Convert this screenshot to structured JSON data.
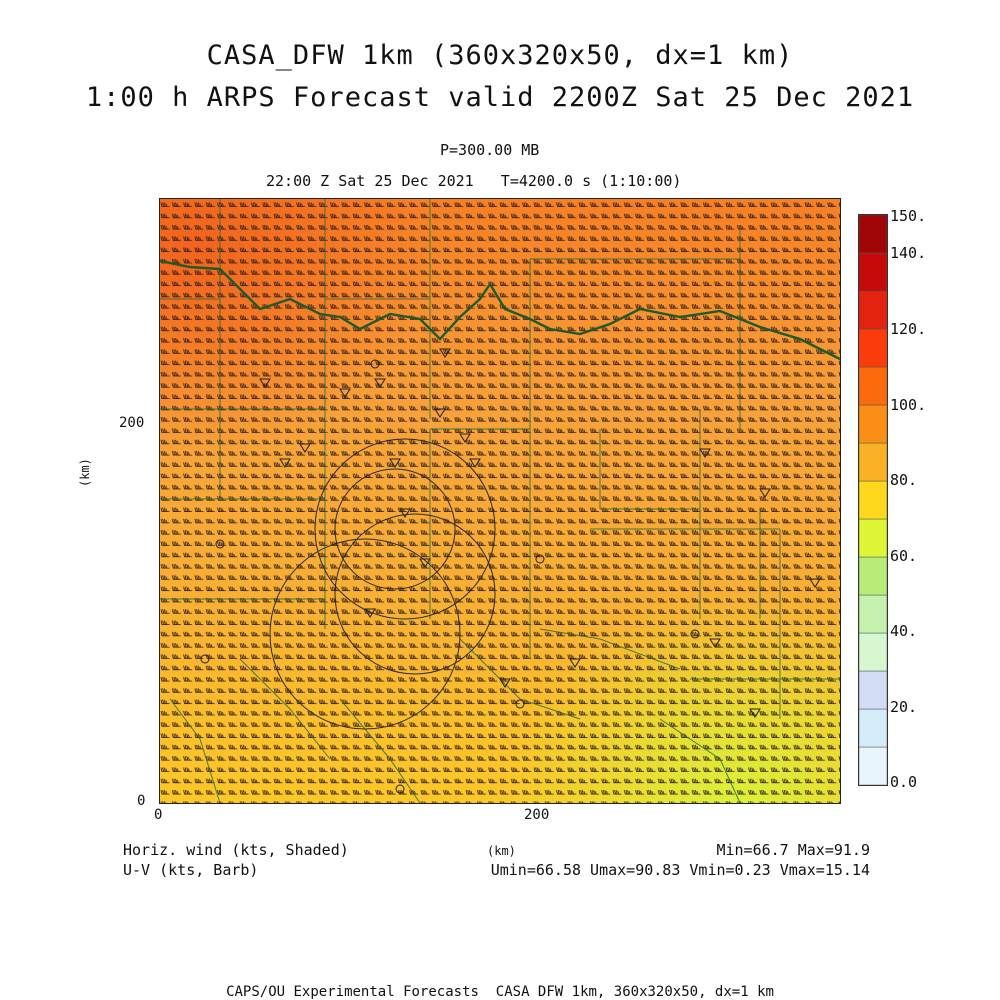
{
  "title": {
    "line1": "CASA_DFW 1km (360x320x50, dx=1 km)",
    "line2": "1:00 h ARPS Forecast valid 2200Z Sat 25 Dec 2021"
  },
  "level": "P=300.00 MB",
  "time": "22:00 Z Sat 25 Dec 2021   T=4200.0 s (1:10:00)",
  "axes": {
    "y_ticks": [
      "0",
      "200"
    ],
    "x_ticks": [
      "0",
      "200"
    ],
    "y_label": "(km)",
    "x_label": "(km)",
    "x_range": [
      0,
      360
    ],
    "y_range": [
      0,
      320
    ]
  },
  "variables": {
    "shaded": "Horiz. wind (kts, Shaded)",
    "barb": "U-V (kts, Barb)"
  },
  "stats": {
    "minmax": "Min=66.7 Max=91.9",
    "uv": "Umin=66.58 Umax=90.83 Vmin=0.23 Vmax=15.14"
  },
  "colorbar": {
    "labels": [
      "150.",
      "140.",
      "120.",
      "100.",
      "80.",
      "60.",
      "40.",
      "20.",
      "0.0"
    ],
    "levels": [
      0,
      10,
      20,
      30,
      40,
      50,
      60,
      70,
      80,
      90,
      100,
      110,
      120,
      130,
      140,
      150
    ],
    "colors": [
      "#e8f6fc",
      "#d4ecf9",
      "#d2dcf5",
      "#d6f7cf",
      "#c4f1ad",
      "#b8ec79",
      "#dcf637",
      "#ffd71c",
      "#fbb124",
      "#fb8e14",
      "#fb6a0c",
      "#fb3b0c",
      "#e32210",
      "#c50a0a",
      "#a00606"
    ]
  },
  "footer": "CAPS/OU Experimental Forecasts  CASA DFW 1km, 360x320x50, dx=1 km"
}
